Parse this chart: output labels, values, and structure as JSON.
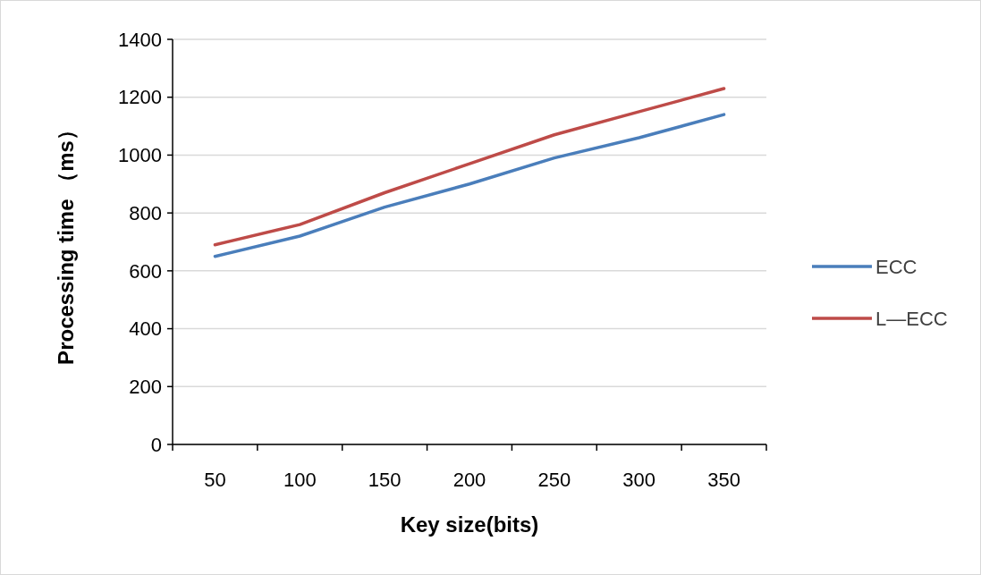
{
  "chart_data": {
    "type": "line",
    "xlabel": "Key size(bits)",
    "ylabel": "Processing time （ms）",
    "categories": [
      "50",
      "100",
      "150",
      "200",
      "250",
      "300",
      "350"
    ],
    "series": [
      {
        "name": "ECC",
        "color": "#4a7ebb",
        "values": [
          650,
          720,
          820,
          900,
          990,
          1060,
          1140
        ]
      },
      {
        "name": "L—ECC",
        "color": "#be4b48",
        "values": [
          690,
          760,
          870,
          970,
          1070,
          1150,
          1230
        ]
      }
    ],
    "ylim": [
      0,
      1400
    ],
    "yticks": [
      0,
      200,
      400,
      600,
      800,
      1000,
      1200,
      1400
    ],
    "grid": "y",
    "legend": "right",
    "marker": "none",
    "line_style": "solid"
  }
}
